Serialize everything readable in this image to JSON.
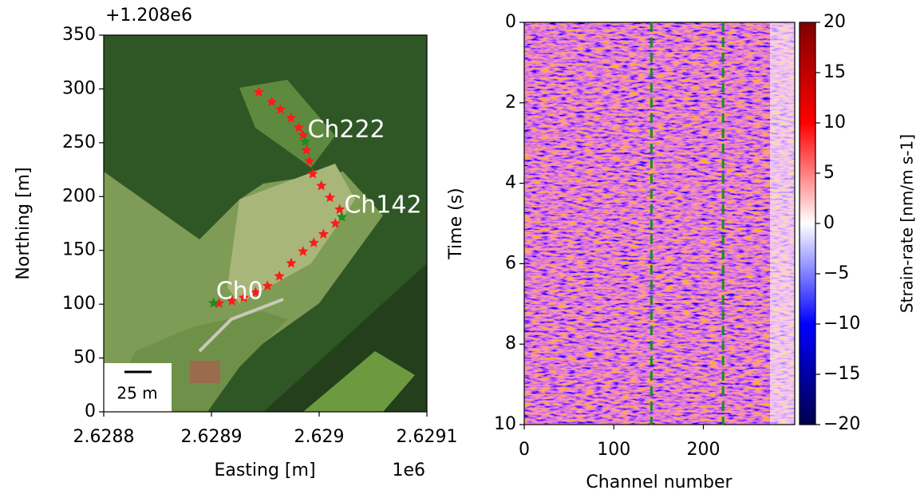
{
  "chart_data": [
    {
      "type": "scatter",
      "x_label": "Easting [m]",
      "y_label": "Northing [m]",
      "x_offset": "1e6",
      "y_offset": "+1.208e6",
      "xlim": [
        2.6288,
        2.6291
      ],
      "ylim": [
        0,
        350
      ],
      "xticks": [
        2.6288,
        2.6289,
        2.629,
        2.6291
      ],
      "yticks": [
        0,
        50,
        100,
        150,
        200,
        250,
        300,
        350
      ],
      "color": "#ff1a1a",
      "x": [
        2.628907,
        2.628919,
        2.62893,
        2.628941,
        2.628952,
        2.628963,
        2.628974,
        2.628985,
        2.628995,
        2.629004,
        2.629015,
        2.629019,
        2.62901,
        2.629002,
        2.628994,
        2.628991,
        2.628988,
        2.628985,
        2.628981,
        2.628974,
        2.628964,
        2.628956,
        2.628944
      ],
      "y": [
        100.8,
        103,
        106,
        111,
        117,
        126,
        138,
        149,
        157,
        165,
        175,
        188,
        199,
        210,
        221,
        233,
        243,
        257,
        264,
        273,
        281,
        288,
        297
      ],
      "annotations": [
        {
          "text": "Ch0",
          "x": 2.628902,
          "y": 101,
          "color": "#1e8c1e"
        },
        {
          "text": "Ch142",
          "x": 2.629021,
          "y": 181,
          "color": "#1e8c1e"
        },
        {
          "text": "Ch222",
          "x": 2.628987,
          "y": 251,
          "color": "#1e8c1e"
        }
      ],
      "scale_bar": {
        "label": "25 m"
      }
    },
    {
      "type": "heatmap",
      "x_label": "Channel number",
      "y_label": "Time (s)",
      "xlim": [
        0,
        302
      ],
      "ylim": [
        0,
        10
      ],
      "y_inverted": true,
      "xticks": [
        0,
        100,
        200
      ],
      "yticks": [
        0,
        2,
        4,
        6,
        8,
        10
      ],
      "vlines": [
        {
          "x": 142,
          "color": "#1e8c1e"
        },
        {
          "x": 222,
          "color": "#1e8c1e"
        }
      ],
      "colorbar": {
        "label": "Strain-rate [nm/m s-1]",
        "colormap": "seismic",
        "lim": [
          -20,
          20
        ],
        "ticks": [
          {
            "value": -20,
            "label": "−20"
          },
          {
            "value": -15,
            "label": "−15"
          },
          {
            "value": -10,
            "label": "−10"
          },
          {
            "value": -5,
            "label": "−5"
          },
          0,
          5,
          10,
          15,
          20
        ]
      }
    }
  ]
}
